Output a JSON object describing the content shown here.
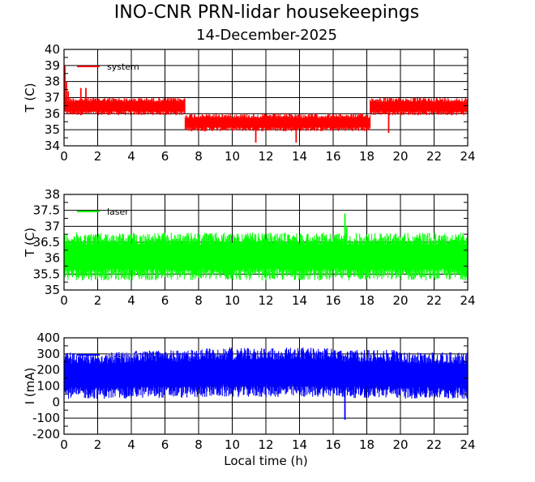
{
  "header": {
    "title": "INO-CNR PRN-lidar housekeepings",
    "subtitle": "14-December-2025"
  },
  "chart_data": [
    {
      "type": "line",
      "ylabel": "T (C)",
      "xlabel": "",
      "xlim": [
        0,
        24
      ],
      "ylim": [
        34,
        40
      ],
      "xticks": [
        "0",
        "2",
        "4",
        "6",
        "8",
        "10",
        "12",
        "14",
        "16",
        "18",
        "20",
        "22",
        "24"
      ],
      "yticks": [
        "34",
        "35",
        "36",
        "37",
        "38",
        "39",
        "40"
      ],
      "grid": true,
      "legend_position": "top-left",
      "series": [
        {
          "name": "system",
          "color": "#ff0000",
          "band": [
            {
              "from": 0.0,
              "to": 7.2,
              "low": 35.9,
              "high": 37.0
            },
            {
              "from": 7.2,
              "to": 18.2,
              "low": 34.9,
              "high": 36.0
            },
            {
              "from": 18.2,
              "to": 24.0,
              "low": 35.9,
              "high": 37.0
            }
          ],
          "spikes": [
            {
              "x": 0.05,
              "y": 39.0
            },
            {
              "x": 0.15,
              "y": 38.0
            },
            {
              "x": 0.25,
              "y": 37.4
            },
            {
              "x": 1.0,
              "y": 37.6
            },
            {
              "x": 1.3,
              "y": 37.6
            },
            {
              "x": 11.4,
              "y": 34.2
            },
            {
              "x": 13.8,
              "y": 34.2
            },
            {
              "x": 19.3,
              "y": 34.8
            }
          ]
        }
      ]
    },
    {
      "type": "line",
      "ylabel": "T (C)",
      "xlabel": "",
      "xlim": [
        0,
        24
      ],
      "ylim": [
        35,
        38
      ],
      "xticks": [
        "0",
        "2",
        "4",
        "6",
        "8",
        "10",
        "12",
        "14",
        "16",
        "18",
        "20",
        "22",
        "24"
      ],
      "yticks": [
        "35",
        "35.5",
        "36",
        "36.5",
        "37",
        "37.5",
        "38"
      ],
      "grid": true,
      "legend_position": "top-left",
      "series": [
        {
          "name": "laser",
          "color": "#00ff00",
          "band": [
            {
              "from": 0.0,
              "to": 24.0,
              "low": 35.3,
              "high": 36.8
            }
          ],
          "spikes": [
            {
              "x": 16.7,
              "y": 37.4
            },
            {
              "x": 16.8,
              "y": 37.0
            }
          ]
        }
      ]
    },
    {
      "type": "line",
      "ylabel": "I (mA)",
      "xlabel": "Local time (h)",
      "xlim": [
        0,
        24
      ],
      "ylim": [
        -200,
        400
      ],
      "xticks": [
        "0",
        "2",
        "4",
        "6",
        "8",
        "10",
        "12",
        "14",
        "16",
        "18",
        "20",
        "22",
        "24"
      ],
      "yticks": [
        "-200",
        "-100",
        "0",
        "100",
        "200",
        "300",
        "400"
      ],
      "grid": true,
      "legend_position": "top-left",
      "series": [
        {
          "name": "scatter",
          "color": "#0000ff",
          "band": [
            {
              "from": 0.0,
              "to": 4.0,
              "low": 20,
              "high": 310
            },
            {
              "from": 4.0,
              "to": 8.0,
              "low": 25,
              "high": 325
            },
            {
              "from": 8.0,
              "to": 16.0,
              "low": 30,
              "high": 340
            },
            {
              "from": 16.0,
              "to": 20.0,
              "low": 25,
              "high": 325
            },
            {
              "from": 20.0,
              "to": 24.0,
              "low": 20,
              "high": 310
            }
          ],
          "spikes": [
            {
              "x": 16.7,
              "y": -110
            }
          ]
        }
      ]
    }
  ]
}
